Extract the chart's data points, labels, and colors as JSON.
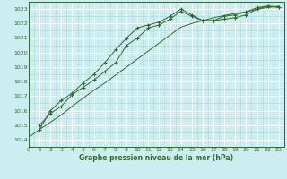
{
  "title": "Graphe pression niveau de la mer (hPa)",
  "background_color": "#cceef0",
  "line_color": "#2d6a2d",
  "grid_major_color": "#ffffff",
  "grid_minor_color": "#aad8dc",
  "xlim": [
    0,
    23
  ],
  "ylim": [
    1013.7,
    1023.4
  ],
  "yticks": [
    1014,
    1015,
    1016,
    1017,
    1018,
    1019,
    1020,
    1021,
    1022,
    1023
  ],
  "xticks": [
    0,
    1,
    2,
    3,
    4,
    5,
    6,
    7,
    8,
    9,
    10,
    11,
    12,
    13,
    14,
    15,
    16,
    17,
    18,
    19,
    20,
    21,
    22,
    23
  ],
  "series_marked1": [
    null,
    1015.0,
    1015.8,
    1016.3,
    1017.1,
    1017.6,
    1018.1,
    1018.7,
    1019.3,
    1020.5,
    1021.0,
    1021.7,
    1021.9,
    1022.3,
    1022.85,
    1022.5,
    1022.2,
    1022.2,
    1022.3,
    1022.4,
    1022.6,
    1023.0,
    1023.2,
    1023.1
  ],
  "series_marked2": [
    null,
    1014.7,
    1016.0,
    1016.7,
    1017.2,
    1017.9,
    1018.5,
    1019.3,
    1020.2,
    1021.0,
    1021.7,
    1021.9,
    1022.1,
    1022.5,
    1023.0,
    1022.6,
    1022.2,
    1022.2,
    1022.5,
    1022.6,
    1022.8,
    1023.1,
    1023.2,
    1023.15
  ],
  "series_line": [
    1014.15,
    1014.7,
    1015.2,
    1015.7,
    1016.3,
    1016.85,
    1017.4,
    1017.9,
    1018.45,
    1019.0,
    1019.55,
    1020.1,
    1020.65,
    1021.2,
    1021.75,
    1022.0,
    1022.2,
    1022.4,
    1022.55,
    1022.7,
    1022.8,
    1023.0,
    1023.1,
    1023.2
  ]
}
